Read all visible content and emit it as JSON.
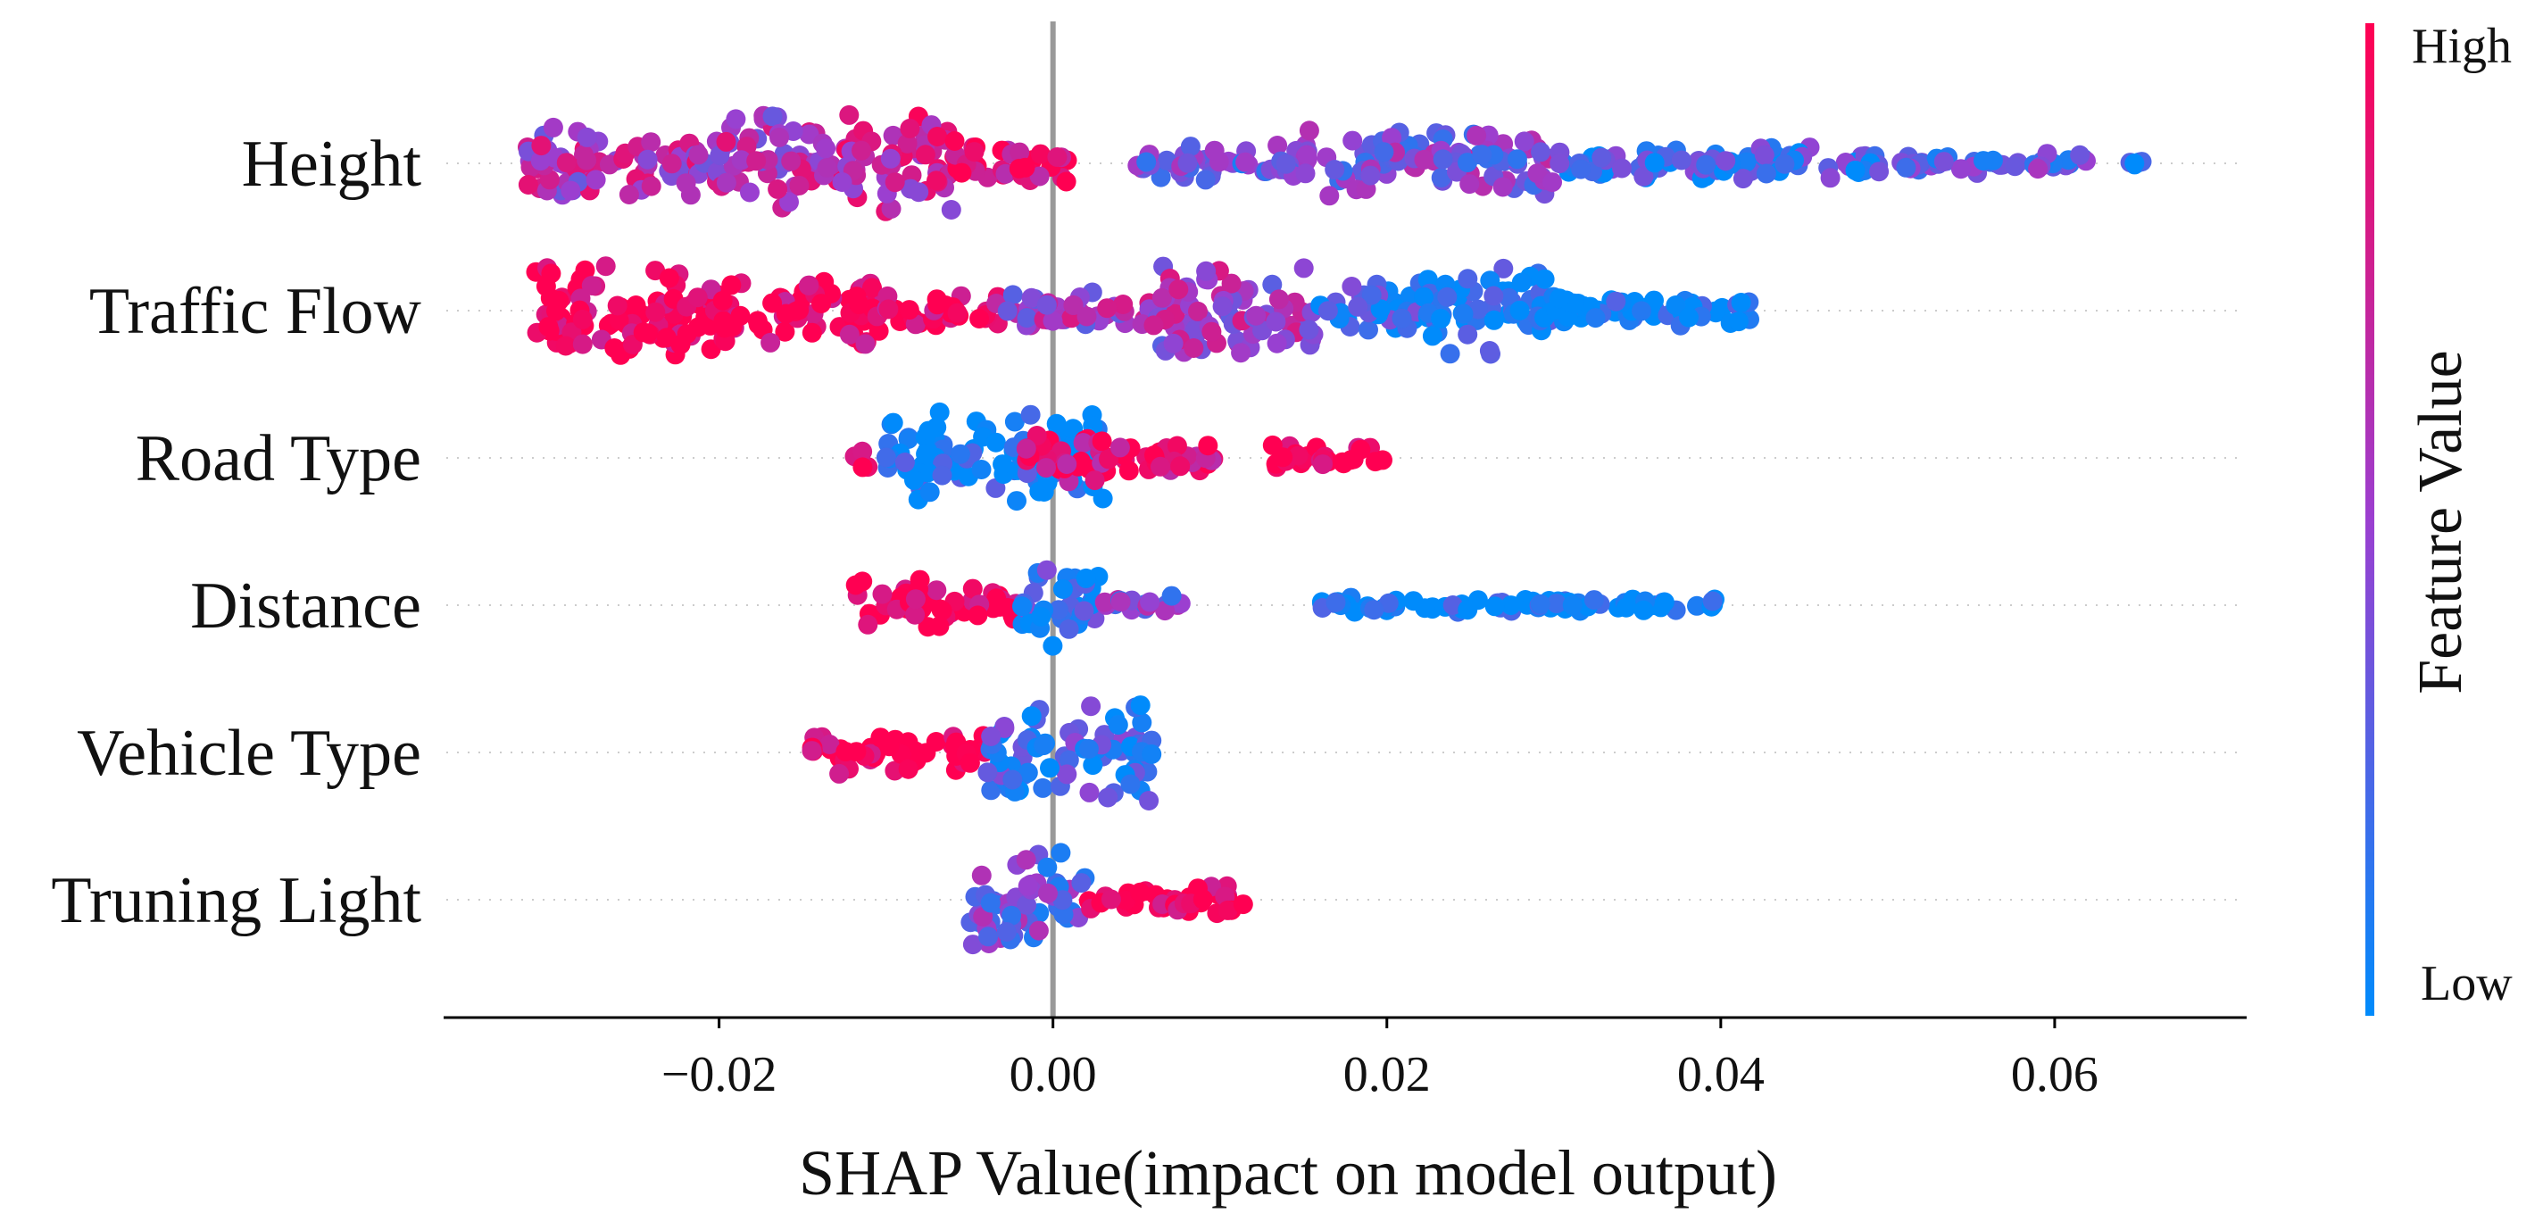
{
  "chart_data": {
    "type": "scatter",
    "subtype": "shap-beeswarm",
    "title": "",
    "xlabel": "SHAP Value(impact on model output)",
    "ylabel": "",
    "xlim": [
      -0.0365,
      0.0715
    ],
    "xticks": [
      {
        "value": -0.02,
        "label": "−0.02"
      },
      {
        "value": 0.0,
        "label": "0.00"
      },
      {
        "value": 0.02,
        "label": "0.02"
      },
      {
        "value": 0.04,
        "label": "0.04"
      },
      {
        "value": 0.06,
        "label": "0.06"
      }
    ],
    "zero_line": 0.0,
    "colorbar": {
      "title": "Feature Value",
      "high_label": "High",
      "low_label": "Low",
      "high_color": "#ff0052",
      "mid_color": "#9b3fd0",
      "low_color": "#008bfb"
    },
    "features": [
      {
        "name": "Height",
        "segments": [
          {
            "from": -0.032,
            "to": -0.026,
            "spread": 0.9,
            "fv": 0.6
          },
          {
            "from": -0.026,
            "to": -0.02,
            "spread": 0.7,
            "fv": 0.62
          },
          {
            "from": -0.02,
            "to": -0.014,
            "spread": 1.0,
            "fv": 0.6
          },
          {
            "from": -0.014,
            "to": -0.006,
            "spread": 1.0,
            "fv": 0.7
          },
          {
            "from": -0.006,
            "to": 0.001,
            "spread": 0.5,
            "fv": 0.9
          },
          {
            "from": 0.005,
            "to": 0.012,
            "spread": 0.4,
            "fv": 0.35
          },
          {
            "from": 0.012,
            "to": 0.03,
            "spread": 0.7,
            "fv": 0.42
          },
          {
            "from": 0.03,
            "to": 0.05,
            "spread": 0.35,
            "fv": 0.2
          },
          {
            "from": 0.05,
            "to": 0.062,
            "spread": 0.2,
            "fv": 0.3
          },
          {
            "from": 0.064,
            "to": 0.066,
            "spread": 0.1,
            "fv": 0.0
          }
        ]
      },
      {
        "name": "Traffic Flow",
        "segments": [
          {
            "from": -0.031,
            "to": -0.02,
            "spread": 1.0,
            "fv": 1.0
          },
          {
            "from": -0.02,
            "to": -0.01,
            "spread": 0.8,
            "fv": 0.97
          },
          {
            "from": -0.01,
            "to": -0.003,
            "spread": 0.35,
            "fv": 0.95
          },
          {
            "from": -0.003,
            "to": 0.006,
            "spread": 0.4,
            "fv": 0.55
          },
          {
            "from": 0.006,
            "to": 0.016,
            "spread": 1.0,
            "fv": 0.55
          },
          {
            "from": 0.016,
            "to": 0.022,
            "spread": 0.6,
            "fv": 0.15
          },
          {
            "from": 0.022,
            "to": 0.03,
            "spread": 0.9,
            "fv": 0.05
          },
          {
            "from": 0.03,
            "to": 0.042,
            "spread": 0.35,
            "fv": 0.0
          }
        ]
      },
      {
        "name": "Road Type",
        "segments": [
          {
            "from": -0.012,
            "to": -0.011,
            "spread": 0.3,
            "fv": 1.0
          },
          {
            "from": -0.01,
            "to": 0.003,
            "spread": 1.0,
            "fv": 0.05
          },
          {
            "from": -0.002,
            "to": 0.01,
            "spread": 0.5,
            "fv": 0.9
          },
          {
            "from": 0.013,
            "to": 0.02,
            "spread": 0.25,
            "fv": 1.0
          }
        ]
      },
      {
        "name": "Distance",
        "segments": [
          {
            "from": -0.012,
            "to": -0.002,
            "spread": 0.5,
            "fv": 1.0
          },
          {
            "from": -0.002,
            "to": 0.003,
            "spread": 1.0,
            "fv": 0.15
          },
          {
            "from": 0.003,
            "to": 0.008,
            "spread": 0.2,
            "fv": 0.4
          },
          {
            "from": 0.016,
            "to": 0.04,
            "spread": 0.15,
            "fv": 0.0
          }
        ]
      },
      {
        "name": "Vehicle Type",
        "segments": [
          {
            "from": -0.0145,
            "to": -0.004,
            "spread": 0.45,
            "fv": 1.0
          },
          {
            "from": -0.004,
            "to": 0.006,
            "spread": 1.0,
            "fv": 0.2
          }
        ]
      },
      {
        "name": "Truning Light",
        "segments": [
          {
            "from": -0.005,
            "to": 0.002,
            "spread": 1.0,
            "fv": 0.35
          },
          {
            "from": 0.002,
            "to": 0.0115,
            "spread": 0.3,
            "fv": 1.0
          }
        ]
      }
    ]
  }
}
